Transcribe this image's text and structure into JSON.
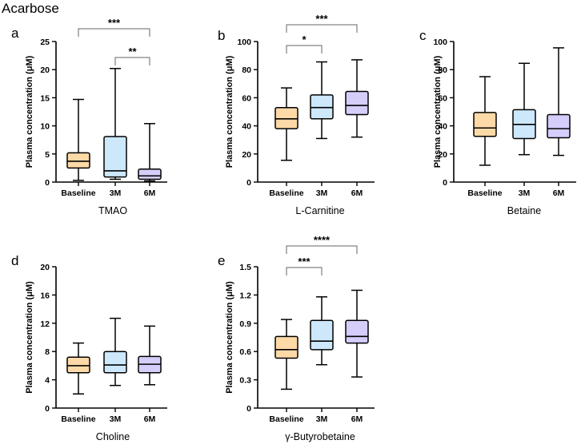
{
  "figure_title": "Acarbose",
  "colors": {
    "Baseline": "#fdd9a8",
    "3M": "#cde7fb",
    "6M": "#d5cdfa",
    "stroke": "#000000",
    "bracket": "#666666"
  },
  "chart_data": [
    {
      "id": "a",
      "type": "box",
      "title": "TMAO",
      "ylabel": "Plasma concentration (μM)",
      "ylim": [
        0,
        25
      ],
      "yticks": [
        0,
        5,
        10,
        15,
        20,
        25
      ],
      "ytick_labels": [
        "0",
        "5",
        "10",
        "15",
        "20",
        "25"
      ],
      "categories": [
        "Baseline",
        "3M",
        "6M"
      ],
      "boxes": [
        {
          "min": 0.3,
          "q1": 2.5,
          "median": 3.7,
          "q3": 5.2,
          "max": 14.7
        },
        {
          "min": 0.5,
          "q1": 0.9,
          "median": 2.0,
          "q3": 8.1,
          "max": 20.2
        },
        {
          "min": 0.2,
          "q1": 0.5,
          "median": 1.1,
          "q3": 2.3,
          "max": 10.4
        }
      ],
      "brackets": [
        {
          "from": 0,
          "to": 2,
          "label": "***",
          "level": 2
        },
        {
          "from": 1,
          "to": 2,
          "label": "**",
          "level": 1
        }
      ]
    },
    {
      "id": "b",
      "type": "box",
      "title": "L-Carnitine",
      "ylabel": "Plasma concentration (μM)",
      "ylim": [
        0,
        100
      ],
      "yticks": [
        0,
        20,
        40,
        60,
        80,
        100
      ],
      "ytick_labels": [
        "0",
        "20",
        "40",
        "60",
        "80",
        "100"
      ],
      "categories": [
        "Baseline",
        "3M",
        "6M"
      ],
      "boxes": [
        {
          "min": 15.5,
          "q1": 38,
          "median": 45,
          "q3": 53,
          "max": 67
        },
        {
          "min": 31,
          "q1": 45,
          "median": 53,
          "q3": 62,
          "max": 85.5
        },
        {
          "min": 32,
          "q1": 48,
          "median": 54.5,
          "q3": 64.5,
          "max": 87
        }
      ],
      "brackets": [
        {
          "from": 0,
          "to": 1,
          "label": "*",
          "level": 1
        },
        {
          "from": 0,
          "to": 2,
          "label": "***",
          "level": 2
        }
      ]
    },
    {
      "id": "c",
      "type": "box",
      "title": "Betaine",
      "ylabel": "Plasma concentration (μM)",
      "ylim": [
        0,
        100
      ],
      "yticks": [
        0,
        20,
        40,
        60,
        80,
        100
      ],
      "ytick_labels": [
        "0",
        "20",
        "40",
        "60",
        "80",
        "100"
      ],
      "categories": [
        "Baseline",
        "3M",
        "6M"
      ],
      "boxes": [
        {
          "min": 12,
          "q1": 32.5,
          "median": 38.5,
          "q3": 49.5,
          "max": 75
        },
        {
          "min": 19.5,
          "q1": 31,
          "median": 41,
          "q3": 51.5,
          "max": 84.5
        },
        {
          "min": 19,
          "q1": 31.5,
          "median": 38,
          "q3": 48,
          "max": 95.5
        }
      ],
      "brackets": []
    },
    {
      "id": "d",
      "type": "box",
      "title": "Choline",
      "ylabel": "Plasma concentration (μM)",
      "ylim": [
        0,
        20
      ],
      "yticks": [
        0,
        4,
        8,
        12,
        16,
        20
      ],
      "ytick_labels": [
        "0",
        "4",
        "8",
        "12",
        "16",
        "20"
      ],
      "categories": [
        "Baseline",
        "3M",
        "6M"
      ],
      "boxes": [
        {
          "min": 2,
          "q1": 5,
          "median": 6,
          "q3": 7.2,
          "max": 9.2
        },
        {
          "min": 3.2,
          "q1": 5,
          "median": 6.1,
          "q3": 8,
          "max": 12.7
        },
        {
          "min": 3.3,
          "q1": 5,
          "median": 6.2,
          "q3": 7.3,
          "max": 11.6
        }
      ],
      "brackets": []
    },
    {
      "id": "e",
      "type": "box",
      "title": "γ-Butyrobetaine",
      "ylabel": "Plasma concentration (μM)",
      "ylim": [
        0,
        1.5
      ],
      "yticks": [
        0,
        0.3,
        0.6,
        0.9,
        1.2,
        1.5
      ],
      "ytick_labels": [
        "0",
        "0.3",
        "0.6",
        "0.9",
        "1.2",
        "1.5"
      ],
      "categories": [
        "Baseline",
        "3M",
        "6M"
      ],
      "boxes": [
        {
          "min": 0.2,
          "q1": 0.53,
          "median": 0.62,
          "q3": 0.76,
          "max": 0.94
        },
        {
          "min": 0.46,
          "q1": 0.62,
          "median": 0.71,
          "q3": 0.93,
          "max": 1.18
        },
        {
          "min": 0.33,
          "q1": 0.69,
          "median": 0.76,
          "q3": 0.93,
          "max": 1.25
        }
      ],
      "brackets": [
        {
          "from": 0,
          "to": 1,
          "label": "***",
          "level": 1
        },
        {
          "from": 0,
          "to": 2,
          "label": "****",
          "level": 2
        }
      ]
    }
  ]
}
